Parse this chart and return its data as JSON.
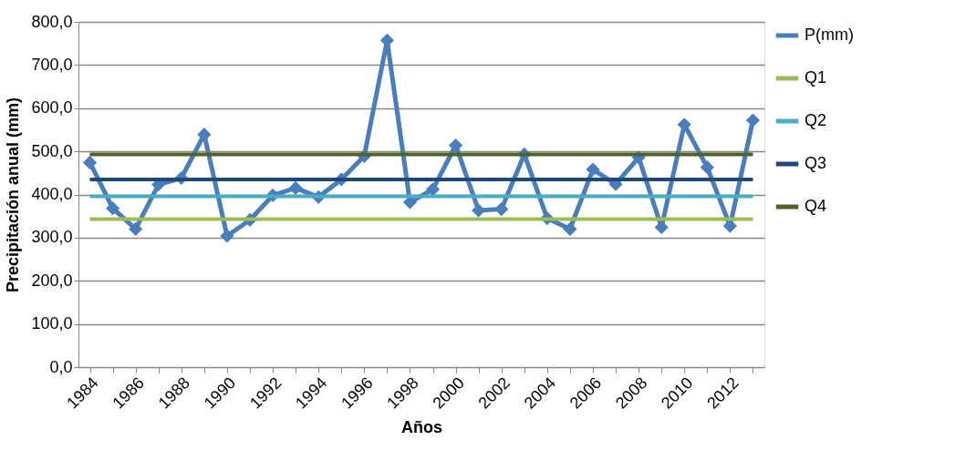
{
  "chart_data": {
    "type": "line",
    "xlabel": "Años",
    "ylabel": "Precipitación anual (mm)",
    "categories": [
      "1984",
      null,
      "1986",
      null,
      "1988",
      null,
      "1990",
      null,
      "1992",
      null,
      "1994",
      null,
      "1996",
      null,
      "1998",
      null,
      "2000",
      null,
      "2002",
      null,
      "2004",
      null,
      "2006",
      null,
      "2008",
      null,
      "2010",
      null,
      "2012",
      null
    ],
    "series": [
      {
        "name": "P(mm)",
        "color": "#4a7ebb",
        "marker": "diamond",
        "values": [
          474,
          368,
          320,
          423,
          438,
          539,
          304,
          341,
          398,
          415,
          394,
          435,
          489,
          757,
          382,
          412,
          514,
          363,
          366,
          493,
          345,
          320,
          458,
          424,
          486,
          324,
          562,
          463,
          327,
          572
        ]
      },
      {
        "name": "Q1",
        "color": "#9bbb59",
        "marker": "none",
        "values": [
          343,
          343,
          343,
          343,
          343,
          343,
          343,
          343,
          343,
          343,
          343,
          343,
          343,
          343,
          343,
          343,
          343,
          343,
          343,
          343,
          343,
          343,
          343,
          343,
          343,
          343,
          343,
          343,
          343,
          343
        ]
      },
      {
        "name": "Q2",
        "color": "#4bacc6",
        "marker": "none",
        "values": [
          396,
          396,
          396,
          396,
          396,
          396,
          396,
          396,
          396,
          396,
          396,
          396,
          396,
          396,
          396,
          396,
          396,
          396,
          396,
          396,
          396,
          396,
          396,
          396,
          396,
          396,
          396,
          396,
          396,
          396
        ]
      },
      {
        "name": "Q3",
        "color": "#1f497d",
        "marker": "none",
        "values": [
          435,
          435,
          435,
          435,
          435,
          435,
          435,
          435,
          435,
          435,
          435,
          435,
          435,
          435,
          435,
          435,
          435,
          435,
          435,
          435,
          435,
          435,
          435,
          435,
          435,
          435,
          435,
          435,
          435,
          435
        ]
      },
      {
        "name": "Q4",
        "color": "#4f6228",
        "marker": "none",
        "values": [
          493,
          493,
          493,
          493,
          493,
          493,
          493,
          493,
          493,
          493,
          493,
          493,
          493,
          493,
          493,
          493,
          493,
          493,
          493,
          493,
          493,
          493,
          493,
          493,
          493,
          493,
          493,
          493,
          493,
          493
        ]
      }
    ],
    "ylim": [
      0,
      800
    ],
    "yticks": [
      {
        "value": 0,
        "label": "0,0"
      },
      {
        "value": 100,
        "label": "100,0"
      },
      {
        "value": 200,
        "label": "200,0"
      },
      {
        "value": 300,
        "label": "300,0"
      },
      {
        "value": 400,
        "label": "400,0"
      },
      {
        "value": 500,
        "label": "500,0"
      },
      {
        "value": 600,
        "label": "600,0"
      },
      {
        "value": 700,
        "label": "700,0"
      },
      {
        "value": 800,
        "label": "800,0"
      }
    ],
    "grid": "y",
    "legend": "right",
    "line_style": "solid"
  }
}
